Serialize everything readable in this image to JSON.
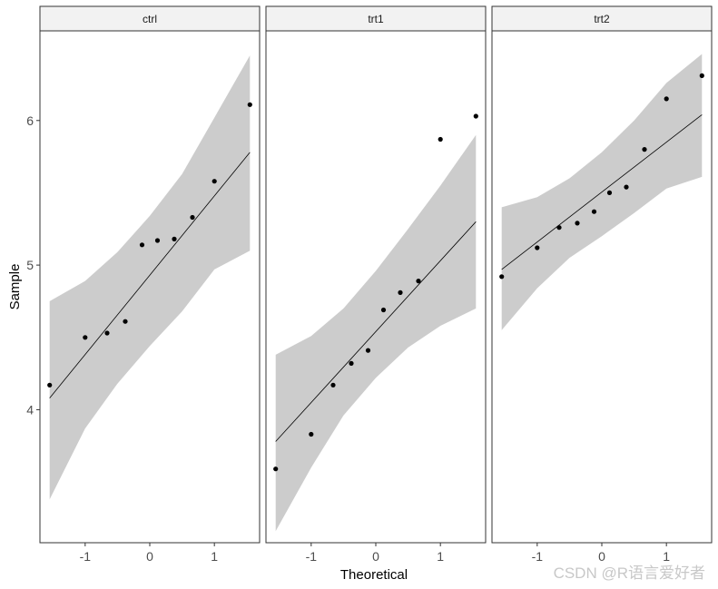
{
  "chart_data": {
    "type": "scatter",
    "subtype": "qq-plot-faceted",
    "xlabel": "Theoretical",
    "ylabel": "Sample",
    "xlim": [
      -1.7,
      1.7
    ],
    "ylim": [
      3.08,
      6.62
    ],
    "x_ticks": [
      -1,
      0,
      1
    ],
    "y_ticks": [
      4,
      5,
      6
    ],
    "grid": false,
    "colors": {
      "point": "#000000",
      "line": "#000000",
      "band": "#cccccc",
      "strip": "#f2f2f2",
      "frame": "#333333"
    },
    "panels": [
      {
        "name": "ctrl",
        "x": [
          -1.55,
          -1.0,
          -0.66,
          -0.38,
          -0.12,
          0.12,
          0.38,
          0.66,
          1.0,
          1.55
        ],
        "y": [
          4.17,
          4.5,
          4.53,
          4.61,
          5.14,
          5.17,
          5.18,
          5.33,
          5.58,
          6.11
        ],
        "line": {
          "x": [
            -1.55,
            1.55
          ],
          "y": [
            4.08,
            5.78
          ]
        },
        "band": {
          "x": [
            -1.55,
            -1.0,
            -0.5,
            0.0,
            0.5,
            1.0,
            1.55
          ],
          "lower": [
            3.38,
            3.87,
            4.18,
            4.44,
            4.68,
            4.97,
            5.1
          ],
          "upper": [
            4.75,
            4.89,
            5.09,
            5.34,
            5.63,
            6.02,
            6.45
          ]
        }
      },
      {
        "name": "trt1",
        "x": [
          -1.55,
          -1.0,
          -0.66,
          -0.38,
          -0.12,
          0.12,
          0.38,
          0.66,
          1.0,
          1.55
        ],
        "y": [
          3.59,
          3.83,
          4.17,
          4.32,
          4.41,
          4.69,
          4.81,
          4.89,
          5.87,
          6.03
        ],
        "line": {
          "x": [
            -1.55,
            1.55
          ],
          "y": [
            3.78,
            5.3
          ]
        },
        "band": {
          "x": [
            -1.55,
            -1.0,
            -0.5,
            0.0,
            0.5,
            1.0,
            1.55
          ],
          "lower": [
            3.16,
            3.6,
            3.96,
            4.22,
            4.43,
            4.58,
            4.7
          ],
          "upper": [
            4.38,
            4.51,
            4.7,
            4.96,
            5.25,
            5.55,
            5.9
          ]
        }
      },
      {
        "name": "trt2",
        "x": [
          -1.55,
          -1.0,
          -0.66,
          -0.38,
          -0.12,
          0.12,
          0.38,
          0.66,
          1.0,
          1.55
        ],
        "y": [
          4.92,
          5.12,
          5.26,
          5.29,
          5.37,
          5.5,
          5.54,
          5.8,
          6.15,
          6.31
        ],
        "line": {
          "x": [
            -1.55,
            1.55
          ],
          "y": [
            4.97,
            6.04
          ]
        },
        "band": {
          "x": [
            -1.55,
            -1.0,
            -0.5,
            0.0,
            0.5,
            1.0,
            1.55
          ],
          "lower": [
            4.55,
            4.84,
            5.05,
            5.2,
            5.36,
            5.53,
            5.61
          ],
          "upper": [
            5.4,
            5.47,
            5.6,
            5.78,
            6.0,
            6.26,
            6.46
          ]
        }
      }
    ]
  },
  "watermark": "CSDN @R语言爱好者"
}
